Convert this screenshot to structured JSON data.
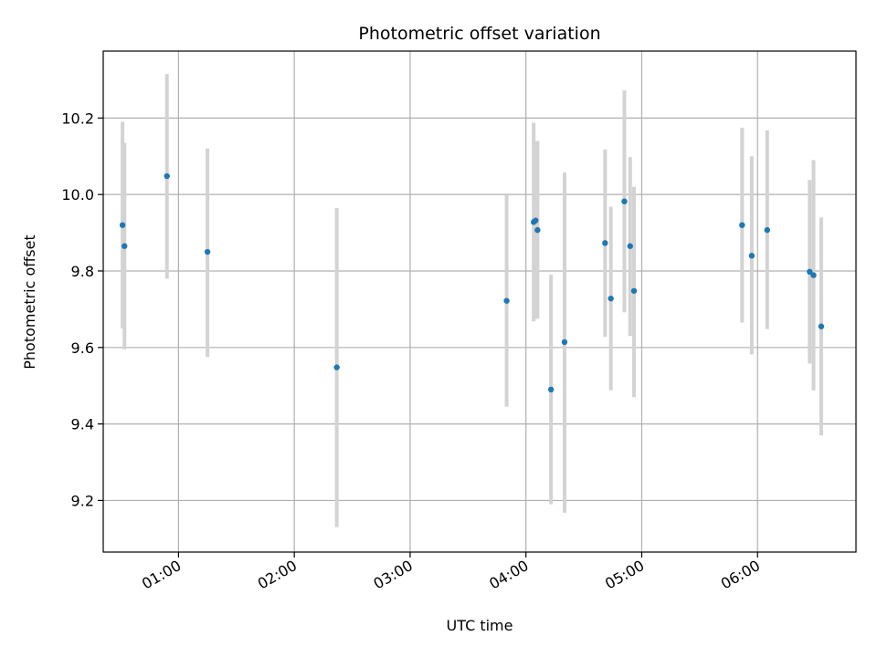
{
  "chart_data": {
    "type": "scatter",
    "title": "Photometric offset variation",
    "xlabel": "UTC time",
    "ylabel": "Photometric offset",
    "xlim": [
      "00:21",
      "06:51"
    ],
    "ylim": [
      9.065,
      10.375
    ],
    "xticks": [
      "01:00",
      "02:00",
      "03:00",
      "04:00",
      "05:00",
      "06:00"
    ],
    "yticks": [
      9.2,
      9.4,
      9.6,
      9.8,
      10.0,
      10.2
    ],
    "grid": true,
    "colors": {
      "point": "#1f77b4",
      "errorbar": "#d3d3d3",
      "grid": "#b0b0b0"
    },
    "points": [
      {
        "x": "00:31",
        "y": 9.92,
        "ylow": 9.65,
        "yhigh": 10.19
      },
      {
        "x": "00:32",
        "y": 9.865,
        "ylow": 9.595,
        "yhigh": 10.135
      },
      {
        "x": "00:54",
        "y": 10.048,
        "ylow": 9.78,
        "yhigh": 10.315
      },
      {
        "x": "01:15",
        "y": 9.85,
        "ylow": 9.575,
        "yhigh": 10.12
      },
      {
        "x": "02:22",
        "y": 9.548,
        "ylow": 9.13,
        "yhigh": 9.965
      },
      {
        "x": "03:50",
        "y": 9.722,
        "ylow": 9.445,
        "yhigh": 9.998
      },
      {
        "x": "04:04",
        "y": 9.928,
        "ylow": 9.668,
        "yhigh": 10.188
      },
      {
        "x": "04:05",
        "y": 9.932,
        "ylow": 9.675,
        "yhigh": 10.14
      },
      {
        "x": "04:06",
        "y": 9.907,
        "ylow": 9.675,
        "yhigh": 10.14
      },
      {
        "x": "04:13",
        "y": 9.49,
        "ylow": 9.19,
        "yhigh": 9.79
      },
      {
        "x": "04:20",
        "y": 9.614,
        "ylow": 9.168,
        "yhigh": 10.058
      },
      {
        "x": "04:41",
        "y": 9.873,
        "ylow": 9.628,
        "yhigh": 10.118
      },
      {
        "x": "04:44",
        "y": 9.728,
        "ylow": 9.488,
        "yhigh": 9.968
      },
      {
        "x": "04:51",
        "y": 9.982,
        "ylow": 9.692,
        "yhigh": 10.272
      },
      {
        "x": "04:54",
        "y": 9.865,
        "ylow": 9.63,
        "yhigh": 10.098
      },
      {
        "x": "04:56",
        "y": 9.748,
        "ylow": 9.47,
        "yhigh": 10.02
      },
      {
        "x": "05:52",
        "y": 9.92,
        "ylow": 9.665,
        "yhigh": 10.175
      },
      {
        "x": "05:57",
        "y": 9.84,
        "ylow": 9.582,
        "yhigh": 10.1
      },
      {
        "x": "06:05",
        "y": 9.907,
        "ylow": 9.648,
        "yhigh": 10.168
      },
      {
        "x": "06:27",
        "y": 9.798,
        "ylow": 9.558,
        "yhigh": 10.038
      },
      {
        "x": "06:29",
        "y": 9.789,
        "ylow": 9.488,
        "yhigh": 10.09
      },
      {
        "x": "06:33",
        "y": 9.655,
        "ylow": 9.37,
        "yhigh": 9.94
      }
    ]
  }
}
